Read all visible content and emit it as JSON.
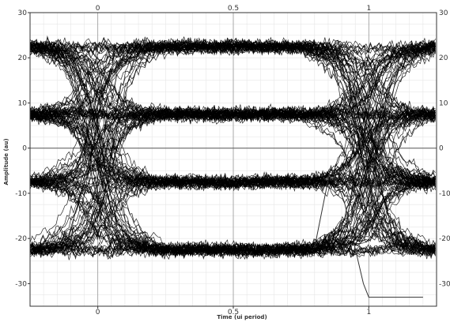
{
  "chart_data": {
    "type": "line",
    "title": "",
    "xlabel": "Time (ui period)",
    "ylabel": "Amplitude (au)",
    "xlim": [
      -0.25,
      1.25
    ],
    "ylim": [
      -35,
      30
    ],
    "x_ticks": [
      0,
      0.5,
      1
    ],
    "x_tick_labels": [
      "0",
      "0.5",
      "1"
    ],
    "y_ticks": [
      -30,
      -20,
      -10,
      0,
      10,
      20,
      30
    ],
    "y_tick_labels": [
      "-30",
      "-20",
      "-10",
      "0",
      "10",
      "20",
      "30"
    ],
    "grid": true,
    "levels": [
      22.5,
      7.5,
      -7.5,
      -22.5
    ],
    "level_spread": 2.0,
    "transition_times": [
      0,
      1
    ],
    "trace_color": "#000000",
    "outlier_series": {
      "x": [
        0.8,
        0.86,
        0.91,
        0.98,
        1.0,
        1.2
      ],
      "y": [
        -22,
        -4,
        -12,
        -30,
        -33,
        -33
      ]
    }
  }
}
